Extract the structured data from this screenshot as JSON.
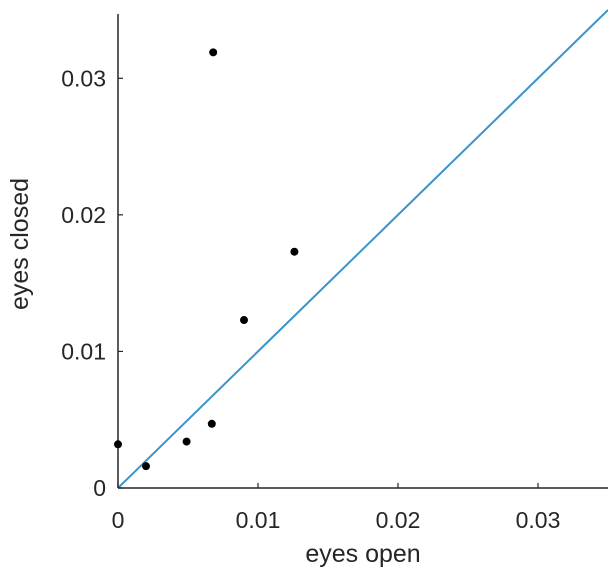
{
  "chart_data": {
    "type": "scatter",
    "xlabel": "eyes open",
    "ylabel": "eyes closed",
    "xlim": [
      0,
      0.035
    ],
    "ylim": [
      0,
      0.035
    ],
    "x_ticks": [
      {
        "value": 0,
        "label": "0"
      },
      {
        "value": 0.01,
        "label": "0.01"
      },
      {
        "value": 0.02,
        "label": "0.02"
      },
      {
        "value": 0.03,
        "label": "0.03"
      }
    ],
    "y_ticks": [
      {
        "value": 0,
        "label": "0"
      },
      {
        "value": 0.01,
        "label": "0.01"
      },
      {
        "value": 0.02,
        "label": "0.02"
      },
      {
        "value": 0.03,
        "label": "0.03"
      }
    ],
    "points": [
      {
        "x": 0.0,
        "y": 0.0032
      },
      {
        "x": 0.002,
        "y": 0.0016
      },
      {
        "x": 0.0049,
        "y": 0.0034
      },
      {
        "x": 0.0067,
        "y": 0.0047
      },
      {
        "x": 0.0068,
        "y": 0.0319
      },
      {
        "x": 0.009,
        "y": 0.0123
      },
      {
        "x": 0.0126,
        "y": 0.0173
      }
    ],
    "reference_line": {
      "x": [
        0,
        0.035
      ],
      "y": [
        0,
        0.035
      ],
      "color": "#3a94cc"
    },
    "point_color": "#000000",
    "axis_color": "#262626",
    "grid": false,
    "legend": "none"
  }
}
